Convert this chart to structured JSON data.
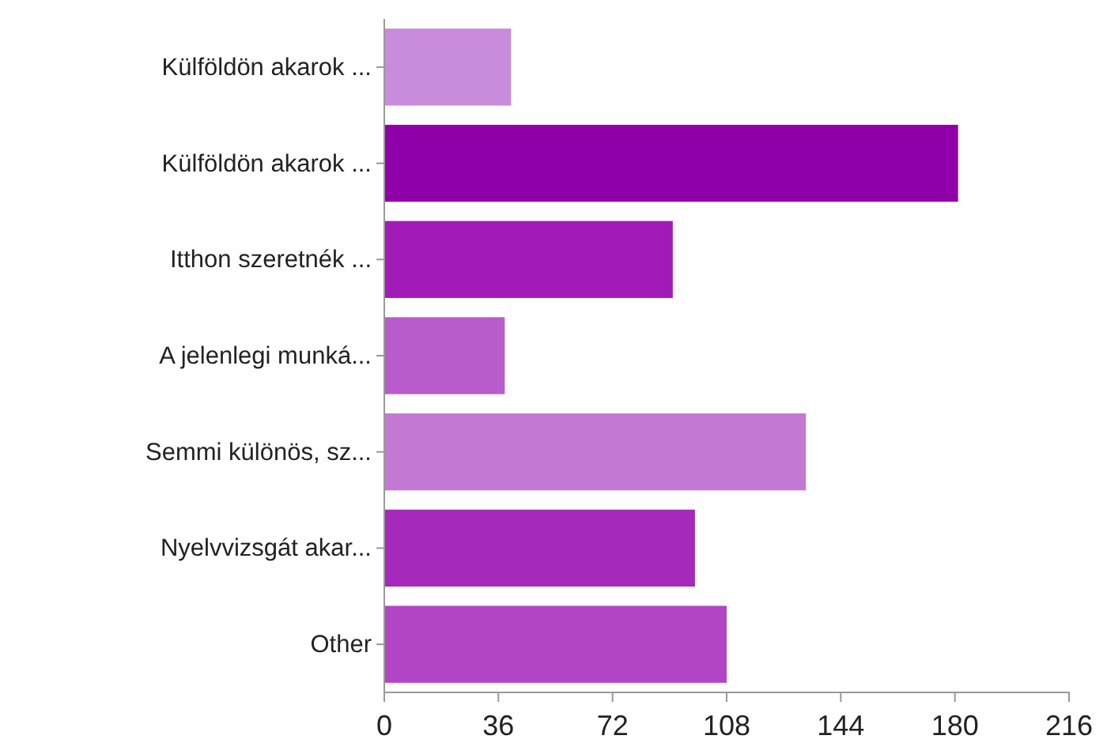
{
  "chart_data": {
    "type": "bar",
    "orientation": "horizontal",
    "categories": [
      "Külföldön akarok ...",
      "Külföldön akarok ...",
      "Itthon szeretnék ...",
      "A jelenlegi munká...",
      "Semmi különös, sz...",
      "Nyelvvizsgát akar...",
      "Other"
    ],
    "values": [
      40,
      181,
      91,
      38,
      133,
      98,
      108
    ],
    "colors": [
      "#c98bdc",
      "#9000a8",
      "#a21ab8",
      "#b85ccb",
      "#c378d3",
      "#a529bb",
      "#b245c6"
    ],
    "xlim": [
      0,
      216
    ],
    "xticks": [
      0,
      36,
      72,
      108,
      144,
      180,
      216
    ],
    "grid": false
  }
}
